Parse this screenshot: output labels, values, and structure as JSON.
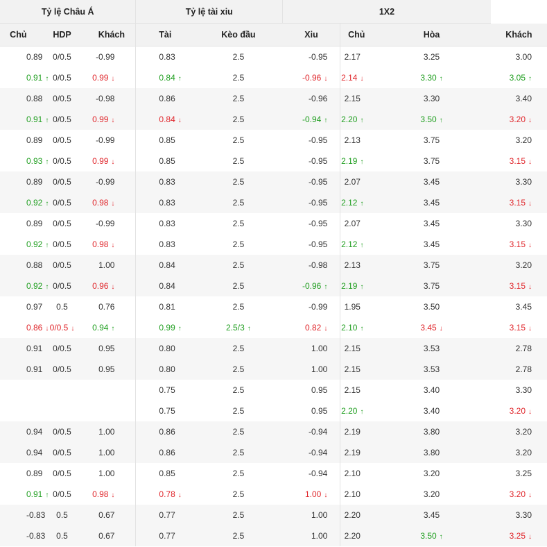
{
  "groups": [
    "Tỷ lệ Châu Á",
    "Tỷ lệ tài xiu",
    "1X2"
  ],
  "columns": [
    "Chủ",
    "HDP",
    "Khách",
    "Tài",
    "Kèo đầu",
    "Xiu",
    "Chủ",
    "Hòa",
    "Khách"
  ],
  "arrows": {
    "up": "🠕",
    "down": "🠗"
  },
  "rows": [
    {
      "shade": false,
      "cells": [
        {
          "v": "0.89"
        },
        {
          "v": "0/0.5"
        },
        {
          "v": "-0.99"
        },
        {
          "v": "0.83"
        },
        {
          "v": "2.5"
        },
        {
          "v": "-0.95"
        },
        {
          "v": "2.17"
        },
        {
          "v": "3.25"
        },
        {
          "v": "3.00"
        }
      ]
    },
    {
      "shade": false,
      "cells": [
        {
          "v": "0.91",
          "d": "up"
        },
        {
          "v": "0/0.5"
        },
        {
          "v": "0.99",
          "d": "down"
        },
        {
          "v": "0.84",
          "d": "up"
        },
        {
          "v": "2.5"
        },
        {
          "v": "-0.96",
          "d": "down"
        },
        {
          "v": "2.14",
          "d": "down"
        },
        {
          "v": "3.30",
          "d": "up"
        },
        {
          "v": "3.05",
          "d": "up"
        }
      ]
    },
    {
      "shade": true,
      "cells": [
        {
          "v": "0.88"
        },
        {
          "v": "0/0.5"
        },
        {
          "v": "-0.98"
        },
        {
          "v": "0.86"
        },
        {
          "v": "2.5"
        },
        {
          "v": "-0.96"
        },
        {
          "v": "2.15"
        },
        {
          "v": "3.30"
        },
        {
          "v": "3.40"
        }
      ]
    },
    {
      "shade": true,
      "cells": [
        {
          "v": "0.91",
          "d": "up"
        },
        {
          "v": "0/0.5"
        },
        {
          "v": "0.99",
          "d": "down"
        },
        {
          "v": "0.84",
          "d": "down"
        },
        {
          "v": "2.5"
        },
        {
          "v": "-0.94",
          "d": "up"
        },
        {
          "v": "2.20",
          "d": "up"
        },
        {
          "v": "3.50",
          "d": "up"
        },
        {
          "v": "3.20",
          "d": "down"
        }
      ]
    },
    {
      "shade": false,
      "cells": [
        {
          "v": "0.89"
        },
        {
          "v": "0/0.5"
        },
        {
          "v": "-0.99"
        },
        {
          "v": "0.85"
        },
        {
          "v": "2.5"
        },
        {
          "v": "-0.95"
        },
        {
          "v": "2.13"
        },
        {
          "v": "3.75"
        },
        {
          "v": "3.20"
        }
      ]
    },
    {
      "shade": false,
      "cells": [
        {
          "v": "0.93",
          "d": "up"
        },
        {
          "v": "0/0.5"
        },
        {
          "v": "0.99",
          "d": "down"
        },
        {
          "v": "0.85"
        },
        {
          "v": "2.5"
        },
        {
          "v": "-0.95"
        },
        {
          "v": "2.19",
          "d": "up"
        },
        {
          "v": "3.75"
        },
        {
          "v": "3.15",
          "d": "down"
        }
      ]
    },
    {
      "shade": true,
      "cells": [
        {
          "v": "0.89"
        },
        {
          "v": "0/0.5"
        },
        {
          "v": "-0.99"
        },
        {
          "v": "0.83"
        },
        {
          "v": "2.5"
        },
        {
          "v": "-0.95"
        },
        {
          "v": "2.07"
        },
        {
          "v": "3.45"
        },
        {
          "v": "3.30"
        }
      ]
    },
    {
      "shade": true,
      "cells": [
        {
          "v": "0.92",
          "d": "up"
        },
        {
          "v": "0/0.5"
        },
        {
          "v": "0.98",
          "d": "down"
        },
        {
          "v": "0.83"
        },
        {
          "v": "2.5"
        },
        {
          "v": "-0.95"
        },
        {
          "v": "2.12",
          "d": "up"
        },
        {
          "v": "3.45"
        },
        {
          "v": "3.15",
          "d": "down"
        }
      ]
    },
    {
      "shade": false,
      "cells": [
        {
          "v": "0.89"
        },
        {
          "v": "0/0.5"
        },
        {
          "v": "-0.99"
        },
        {
          "v": "0.83"
        },
        {
          "v": "2.5"
        },
        {
          "v": "-0.95"
        },
        {
          "v": "2.07"
        },
        {
          "v": "3.45"
        },
        {
          "v": "3.30"
        }
      ]
    },
    {
      "shade": false,
      "cells": [
        {
          "v": "0.92",
          "d": "up"
        },
        {
          "v": "0/0.5"
        },
        {
          "v": "0.98",
          "d": "down"
        },
        {
          "v": "0.83"
        },
        {
          "v": "2.5"
        },
        {
          "v": "-0.95"
        },
        {
          "v": "2.12",
          "d": "up"
        },
        {
          "v": "3.45"
        },
        {
          "v": "3.15",
          "d": "down"
        }
      ]
    },
    {
      "shade": true,
      "cells": [
        {
          "v": "0.88"
        },
        {
          "v": "0/0.5"
        },
        {
          "v": "1.00"
        },
        {
          "v": "0.84"
        },
        {
          "v": "2.5"
        },
        {
          "v": "-0.98"
        },
        {
          "v": "2.13"
        },
        {
          "v": "3.75"
        },
        {
          "v": "3.20"
        }
      ]
    },
    {
      "shade": true,
      "cells": [
        {
          "v": "0.92",
          "d": "up"
        },
        {
          "v": "0/0.5"
        },
        {
          "v": "0.96",
          "d": "down"
        },
        {
          "v": "0.84"
        },
        {
          "v": "2.5"
        },
        {
          "v": "-0.96",
          "d": "up"
        },
        {
          "v": "2.19",
          "d": "up"
        },
        {
          "v": "3.75"
        },
        {
          "v": "3.15",
          "d": "down"
        }
      ]
    },
    {
      "shade": false,
      "cells": [
        {
          "v": "0.97"
        },
        {
          "v": "0.5"
        },
        {
          "v": "0.76"
        },
        {
          "v": "0.81"
        },
        {
          "v": "2.5"
        },
        {
          "v": "-0.99"
        },
        {
          "v": "1.95"
        },
        {
          "v": "3.50"
        },
        {
          "v": "3.45"
        }
      ]
    },
    {
      "shade": false,
      "cells": [
        {
          "v": "0.86",
          "d": "down"
        },
        {
          "v": "0/0.5",
          "d": "down"
        },
        {
          "v": "0.94",
          "d": "up"
        },
        {
          "v": "0.99",
          "d": "up"
        },
        {
          "v": "2.5/3",
          "d": "up"
        },
        {
          "v": "0.82",
          "d": "down"
        },
        {
          "v": "2.10",
          "d": "up"
        },
        {
          "v": "3.45",
          "d": "down"
        },
        {
          "v": "3.15",
          "d": "down"
        }
      ]
    },
    {
      "shade": true,
      "cells": [
        {
          "v": "0.91"
        },
        {
          "v": "0/0.5"
        },
        {
          "v": "0.95"
        },
        {
          "v": "0.80"
        },
        {
          "v": "2.5"
        },
        {
          "v": "1.00"
        },
        {
          "v": "2.15"
        },
        {
          "v": "3.53"
        },
        {
          "v": "2.78"
        }
      ]
    },
    {
      "shade": true,
      "cells": [
        {
          "v": "0.91"
        },
        {
          "v": "0/0.5"
        },
        {
          "v": "0.95"
        },
        {
          "v": "0.80"
        },
        {
          "v": "2.5"
        },
        {
          "v": "1.00"
        },
        {
          "v": "2.15"
        },
        {
          "v": "3.53"
        },
        {
          "v": "2.78"
        }
      ]
    },
    {
      "shade": false,
      "cells": [
        {
          "v": ""
        },
        {
          "v": ""
        },
        {
          "v": ""
        },
        {
          "v": "0.75"
        },
        {
          "v": "2.5"
        },
        {
          "v": "0.95"
        },
        {
          "v": "2.15"
        },
        {
          "v": "3.40"
        },
        {
          "v": "3.30"
        }
      ]
    },
    {
      "shade": false,
      "cells": [
        {
          "v": ""
        },
        {
          "v": ""
        },
        {
          "v": ""
        },
        {
          "v": "0.75"
        },
        {
          "v": "2.5"
        },
        {
          "v": "0.95"
        },
        {
          "v": "2.20",
          "d": "up"
        },
        {
          "v": "3.40"
        },
        {
          "v": "3.20",
          "d": "down"
        }
      ]
    },
    {
      "shade": true,
      "cells": [
        {
          "v": "0.94"
        },
        {
          "v": "0/0.5"
        },
        {
          "v": "1.00"
        },
        {
          "v": "0.86"
        },
        {
          "v": "2.5"
        },
        {
          "v": "-0.94"
        },
        {
          "v": "2.19"
        },
        {
          "v": "3.80"
        },
        {
          "v": "3.20"
        }
      ]
    },
    {
      "shade": true,
      "cells": [
        {
          "v": "0.94"
        },
        {
          "v": "0/0.5"
        },
        {
          "v": "1.00"
        },
        {
          "v": "0.86"
        },
        {
          "v": "2.5"
        },
        {
          "v": "-0.94"
        },
        {
          "v": "2.19"
        },
        {
          "v": "3.80"
        },
        {
          "v": "3.20"
        }
      ]
    },
    {
      "shade": false,
      "cells": [
        {
          "v": "0.89"
        },
        {
          "v": "0/0.5"
        },
        {
          "v": "1.00"
        },
        {
          "v": "0.85"
        },
        {
          "v": "2.5"
        },
        {
          "v": "-0.94"
        },
        {
          "v": "2.10"
        },
        {
          "v": "3.20"
        },
        {
          "v": "3.25"
        }
      ]
    },
    {
      "shade": false,
      "cells": [
        {
          "v": "0.91",
          "d": "up"
        },
        {
          "v": "0/0.5"
        },
        {
          "v": "0.98",
          "d": "down"
        },
        {
          "v": "0.78",
          "d": "down"
        },
        {
          "v": "2.5"
        },
        {
          "v": "1.00",
          "d": "down"
        },
        {
          "v": "2.10"
        },
        {
          "v": "3.20"
        },
        {
          "v": "3.20",
          "d": "down"
        }
      ]
    },
    {
      "shade": true,
      "cells": [
        {
          "v": "-0.83"
        },
        {
          "v": "0.5"
        },
        {
          "v": "0.67"
        },
        {
          "v": "0.77"
        },
        {
          "v": "2.5"
        },
        {
          "v": "1.00"
        },
        {
          "v": "2.20"
        },
        {
          "v": "3.45"
        },
        {
          "v": "3.30"
        }
      ]
    },
    {
      "shade": true,
      "cells": [
        {
          "v": "-0.83"
        },
        {
          "v": "0.5"
        },
        {
          "v": "0.67"
        },
        {
          "v": "0.77"
        },
        {
          "v": "2.5"
        },
        {
          "v": "1.00"
        },
        {
          "v": "2.20"
        },
        {
          "v": "3.50",
          "d": "up"
        },
        {
          "v": "3.25",
          "d": "down"
        }
      ]
    }
  ]
}
